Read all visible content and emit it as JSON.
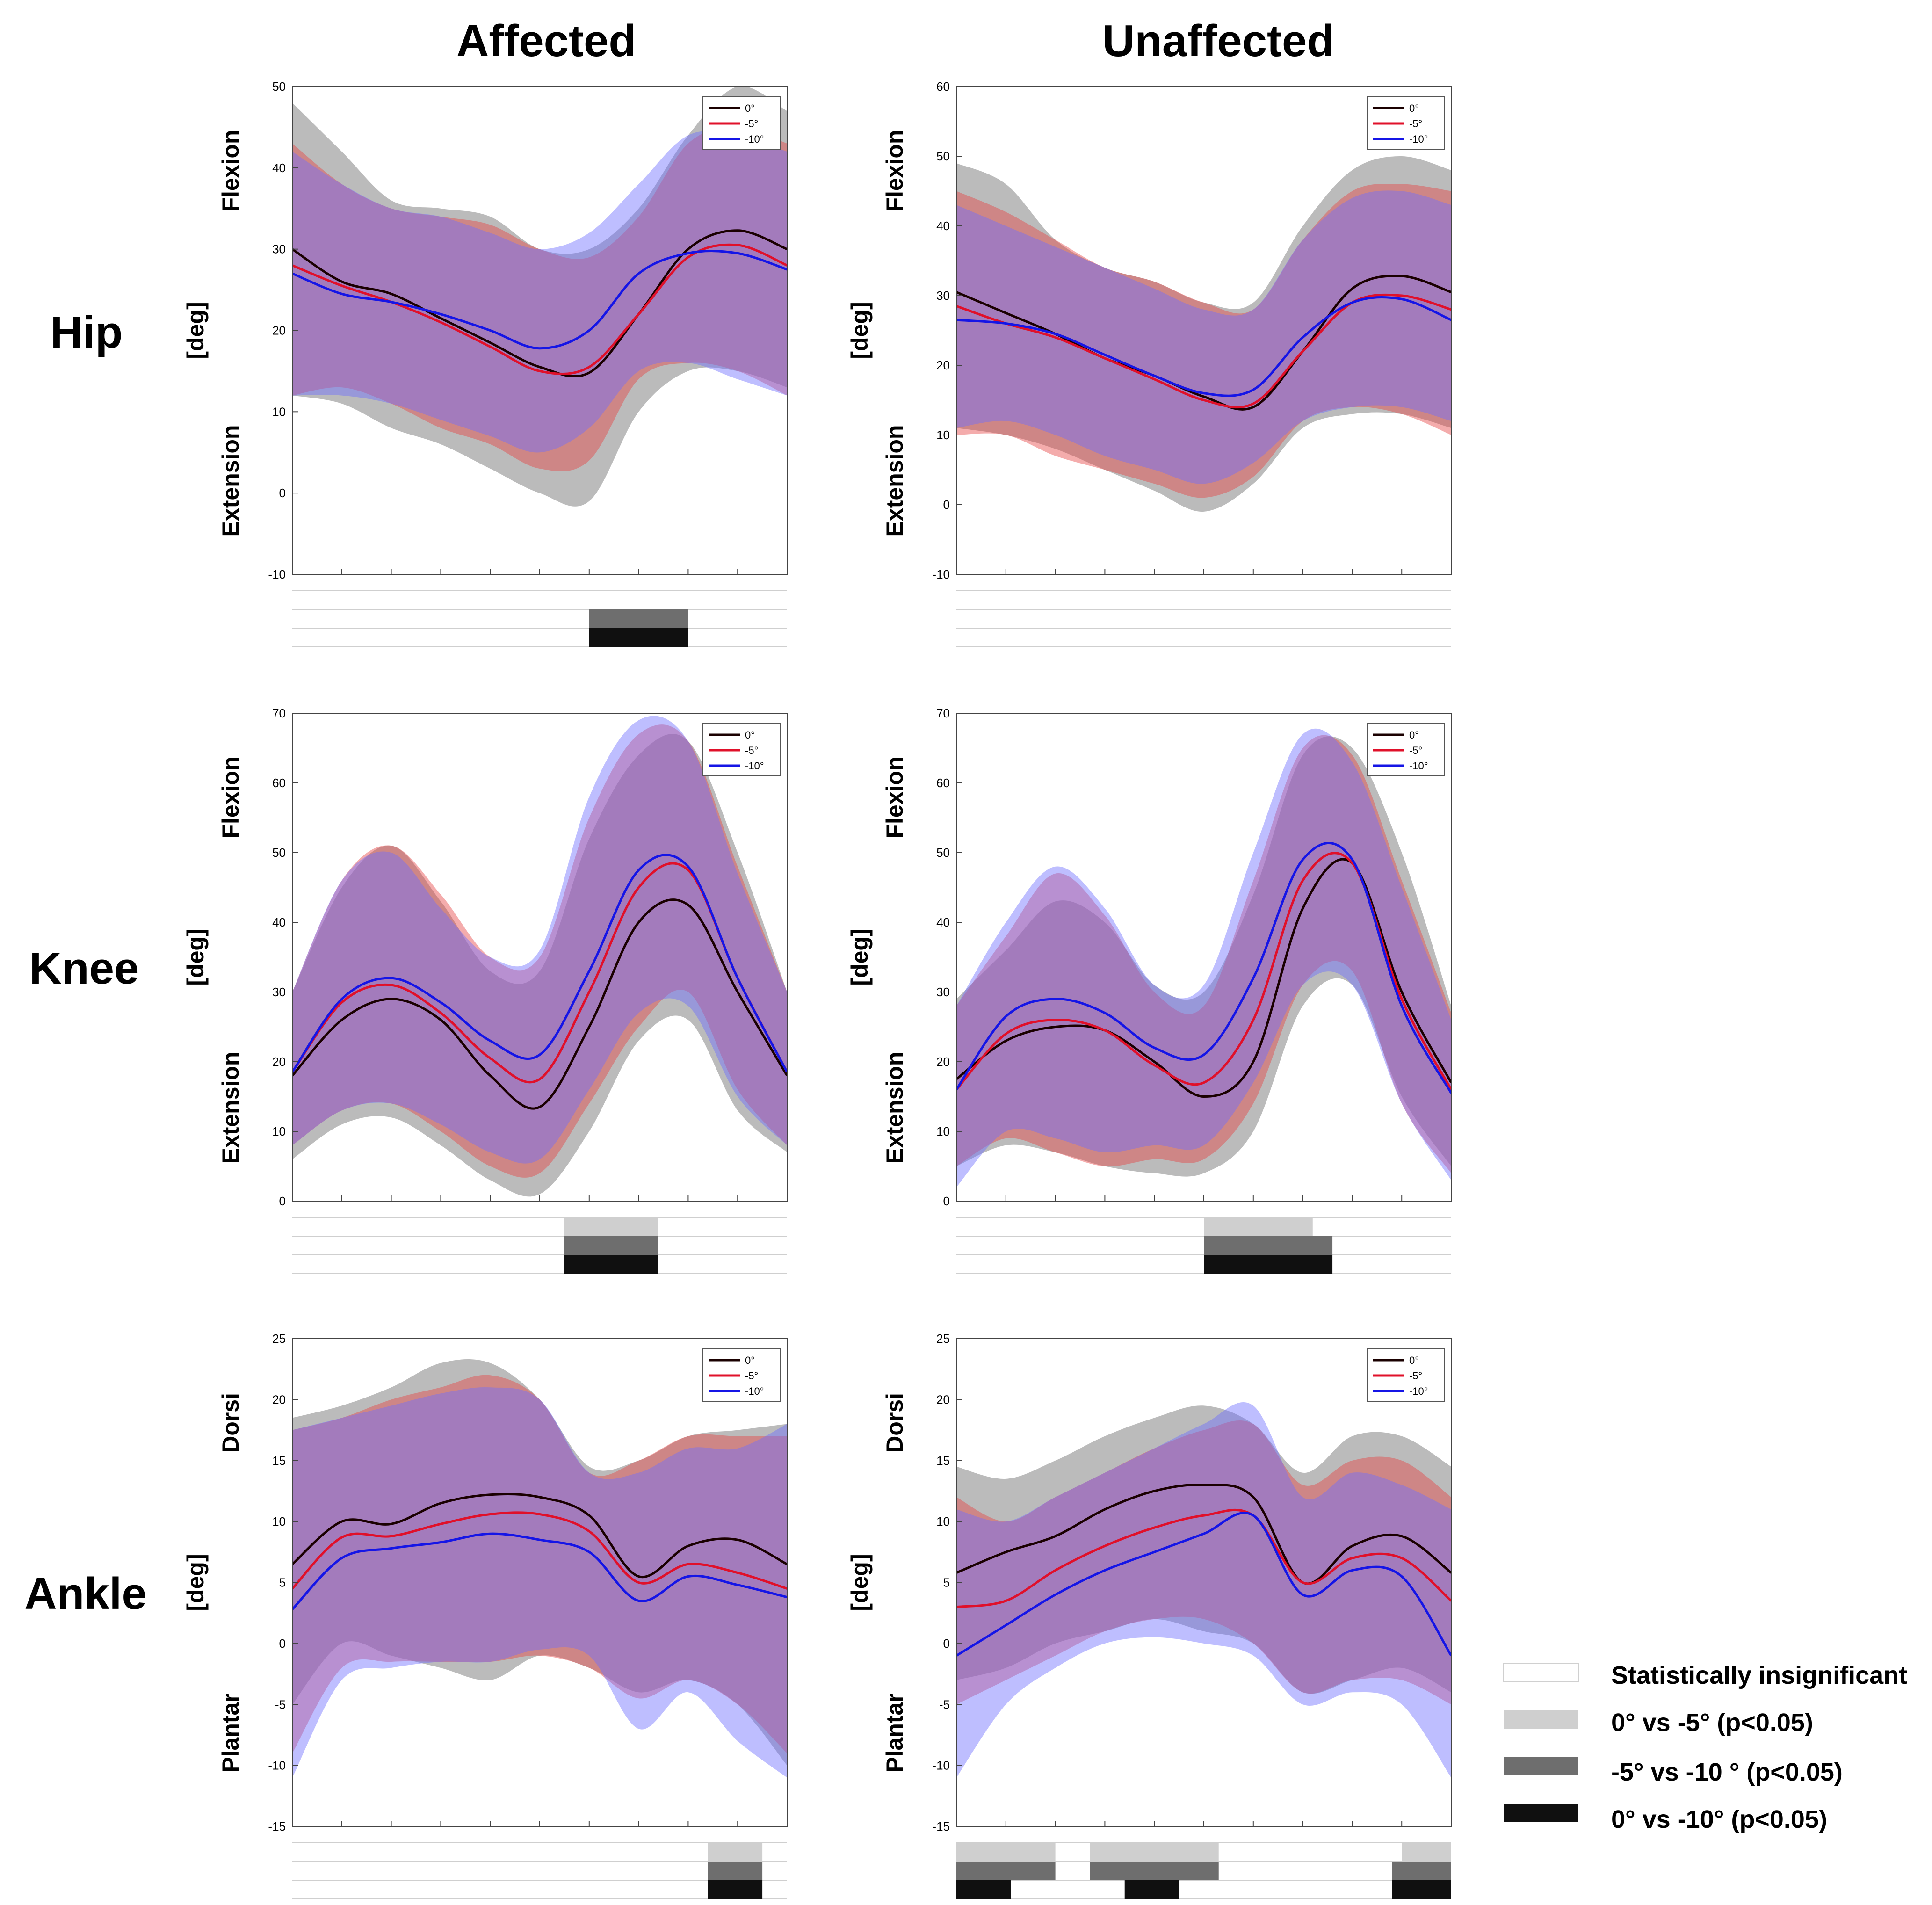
{
  "columns": [
    "Affected",
    "Unaffected"
  ],
  "rows": [
    "Hip",
    "Knee",
    "Ankle"
  ],
  "legend_series": [
    "0°",
    "-5°",
    "-10°"
  ],
  "colors": {
    "zero": "#1a0000",
    "minus5": "#e0102a",
    "minus10": "#1515e6",
    "band_zero": "rgba(120,120,120,0.5)",
    "band_minus5": "rgba(230,70,70,0.45)",
    "band_minus10": "rgba(110,110,255,0.45)",
    "sig_light": "#cfcfcf",
    "sig_mid": "#6e6e6e",
    "sig_dark": "#101010"
  },
  "sig_legend": [
    {
      "label": "Statistically insignificant",
      "color": "#ffffff"
    },
    {
      "label": "0° vs -5° (p<0.05)",
      "color": "#cfcfcf"
    },
    {
      "label": "-5° vs -10 ° (p<0.05)",
      "color": "#6e6e6e"
    },
    {
      "label": "0° vs -10° (p<0.05)",
      "color": "#101010"
    }
  ],
  "chart_data": [
    {
      "type": "line",
      "joint": "Hip",
      "side": "Affected",
      "ylabel": "[deg]",
      "top_label": "Flexion",
      "bottom_label": "Extension",
      "ylim": [
        -10,
        50
      ],
      "yticks": [
        -10,
        0,
        10,
        20,
        30,
        40,
        50
      ],
      "x": [
        0,
        10,
        20,
        30,
        40,
        50,
        60,
        70,
        80,
        90,
        100
      ],
      "series": [
        {
          "name": "0°",
          "color_key": "zero",
          "mean": [
            30,
            26,
            24.5,
            21.5,
            18.5,
            15.5,
            14.8,
            22,
            30,
            32.3,
            30
          ],
          "upper": [
            48,
            42,
            36,
            35,
            34,
            30,
            30,
            35,
            44,
            50,
            47
          ],
          "lower": [
            12,
            11,
            8,
            6,
            3,
            0,
            -1,
            10,
            15,
            15,
            13
          ]
        },
        {
          "name": "-5°",
          "color_key": "minus5",
          "mean": [
            28,
            25.5,
            23.5,
            21,
            18,
            15,
            15.5,
            22,
            29,
            30.5,
            28
          ],
          "upper": [
            43,
            38,
            35,
            34,
            33,
            30,
            29,
            34,
            43,
            45,
            43
          ],
          "lower": [
            12,
            13,
            11,
            8,
            6,
            3,
            4,
            14,
            16,
            15,
            12
          ]
        },
        {
          "name": "-10°",
          "color_key": "minus10",
          "mean": [
            27,
            24.5,
            23.5,
            22,
            20,
            17.8,
            20,
            27,
            29.5,
            29.5,
            27.5
          ],
          "upper": [
            42,
            38,
            35,
            34,
            32,
            30,
            32,
            38,
            44,
            44,
            42
          ],
          "lower": [
            12,
            12,
            11,
            9,
            7,
            5,
            8,
            15,
            16,
            14,
            12
          ]
        }
      ],
      "significance": {
        "insignificant": [],
        "zero_vs_minus5": [],
        "minus5_vs_minus10": [
          [
            60,
            80
          ]
        ],
        "zero_vs_minus10": [
          [
            60,
            80
          ]
        ]
      }
    },
    {
      "type": "line",
      "joint": "Hip",
      "side": "Unaffected",
      "ylabel": "[deg]",
      "top_label": "Flexion",
      "bottom_label": "Extension",
      "ylim": [
        -10,
        60
      ],
      "yticks": [
        -10,
        0,
        10,
        20,
        30,
        40,
        50,
        60
      ],
      "x": [
        0,
        10,
        20,
        30,
        40,
        50,
        60,
        70,
        80,
        90,
        100
      ],
      "series": [
        {
          "name": "0°",
          "color_key": "zero",
          "mean": [
            30.5,
            27.5,
            24.5,
            21,
            18.5,
            15.5,
            14,
            22,
            31,
            32.8,
            30.5
          ],
          "upper": [
            49,
            46,
            38,
            34,
            32,
            29,
            29,
            40,
            48,
            50,
            48
          ],
          "lower": [
            11,
            10,
            8,
            5,
            2,
            -1,
            3,
            11,
            13,
            13,
            11
          ]
        },
        {
          "name": "-5°",
          "color_key": "minus5",
          "mean": [
            28.5,
            26,
            24,
            21,
            18,
            15,
            14.5,
            22,
            29,
            30,
            28
          ],
          "upper": [
            45,
            42,
            38,
            34,
            32,
            29,
            28,
            38,
            45,
            46,
            45
          ],
          "lower": [
            10,
            10,
            7,
            5,
            3,
            1,
            4,
            12,
            14,
            13,
            10
          ]
        },
        {
          "name": "-10°",
          "color_key": "minus10",
          "mean": [
            26.5,
            26,
            24.5,
            21.5,
            18.5,
            16,
            16.5,
            24,
            29,
            29.5,
            26.5
          ],
          "upper": [
            43,
            40,
            37,
            34,
            31,
            28,
            28,
            38,
            44,
            45,
            43
          ],
          "lower": [
            11,
            12,
            10,
            7,
            5,
            3,
            6,
            12,
            14,
            14,
            12
          ]
        }
      ],
      "significance": {
        "insignificant": [],
        "zero_vs_minus5": [],
        "minus5_vs_minus10": [],
        "zero_vs_minus10": []
      }
    },
    {
      "type": "line",
      "joint": "Knee",
      "side": "Affected",
      "ylabel": "[deg]",
      "top_label": "Flexion",
      "bottom_label": "Extension",
      "ylim": [
        0,
        70
      ],
      "yticks": [
        0,
        10,
        20,
        30,
        40,
        50,
        60,
        70
      ],
      "x": [
        0,
        10,
        20,
        30,
        40,
        50,
        60,
        70,
        80,
        90,
        100
      ],
      "series": [
        {
          "name": "0°",
          "color_key": "zero",
          "mean": [
            18,
            26,
            29,
            26,
            18,
            13.5,
            25,
            40,
            42.5,
            30,
            18
          ],
          "upper": [
            30,
            45,
            51,
            43,
            33,
            33,
            52,
            64,
            66,
            50,
            30
          ],
          "lower": [
            6,
            11,
            12,
            8,
            3,
            1,
            10,
            23,
            26,
            13,
            7
          ]
        },
        {
          "name": "-5°",
          "color_key": "minus5",
          "mean": [
            18.5,
            28.5,
            31,
            27,
            20.5,
            17.5,
            30,
            45,
            47.5,
            32,
            18.5
          ],
          "upper": [
            30,
            46,
            51,
            44,
            35,
            35,
            55,
            67,
            66,
            48,
            30
          ],
          "lower": [
            8,
            13,
            14,
            10,
            5,
            4,
            14,
            25,
            30,
            16,
            8
          ]
        },
        {
          "name": "-10°",
          "color_key": "minus10",
          "mean": [
            18.5,
            29,
            32,
            28.5,
            23,
            21,
            33,
            47.5,
            48,
            32,
            18.5
          ],
          "upper": [
            30,
            46,
            50,
            42,
            35,
            36,
            58,
            69,
            66,
            47,
            30
          ],
          "lower": [
            8,
            13,
            14,
            11,
            7,
            6,
            16,
            27,
            28,
            15,
            8
          ]
        }
      ],
      "significance": {
        "insignificant": [],
        "zero_vs_minus5": [
          [
            55,
            74
          ]
        ],
        "minus5_vs_minus10": [
          [
            55,
            74
          ]
        ],
        "zero_vs_minus10": [
          [
            55,
            74
          ]
        ]
      }
    },
    {
      "type": "line",
      "joint": "Knee",
      "side": "Unaffected",
      "ylabel": "[deg]",
      "top_label": "Flexion",
      "bottom_label": "Extension",
      "ylim": [
        0,
        70
      ],
      "yticks": [
        0,
        10,
        20,
        30,
        40,
        50,
        60,
        70
      ],
      "x": [
        0,
        10,
        20,
        30,
        40,
        50,
        60,
        70,
        80,
        90,
        100
      ],
      "series": [
        {
          "name": "0°",
          "color_key": "zero",
          "mean": [
            17.5,
            23,
            25,
            24.5,
            20,
            15,
            20,
            42,
            48.5,
            30,
            17
          ],
          "upper": [
            29,
            36,
            43,
            40,
            31,
            30,
            44,
            64,
            65,
            50,
            28
          ],
          "lower": [
            5,
            8,
            7,
            5,
            4,
            4,
            10,
            28,
            31,
            15,
            5
          ]
        },
        {
          "name": "-5°",
          "color_key": "minus5",
          "mean": [
            16,
            24,
            26,
            24.5,
            19.5,
            17,
            26,
            46,
            48.5,
            29,
            16
          ],
          "upper": [
            28,
            38,
            47,
            41,
            30,
            28,
            46,
            65,
            64,
            46,
            27
          ],
          "lower": [
            5,
            9,
            7,
            5,
            6,
            6,
            14,
            31,
            33,
            14,
            4
          ]
        },
        {
          "name": "-10°",
          "color_key": "minus10",
          "mean": [
            16,
            26.5,
            29,
            27,
            22,
            21,
            32,
            49,
            49,
            28,
            15.5
          ],
          "upper": [
            28,
            40,
            48,
            42,
            31,
            31,
            50,
            67,
            63,
            45,
            26
          ],
          "lower": [
            2,
            10,
            9,
            7,
            8,
            8,
            17,
            31,
            31,
            14,
            3
          ]
        }
      ],
      "significance": {
        "insignificant": [],
        "zero_vs_minus5": [
          [
            50,
            72
          ]
        ],
        "minus5_vs_minus10": [
          [
            50,
            76
          ]
        ],
        "zero_vs_minus10": [
          [
            50,
            76
          ]
        ]
      }
    },
    {
      "type": "line",
      "joint": "Ankle",
      "side": "Affected",
      "ylabel": "[deg]",
      "top_label": "Dorsi",
      "bottom_label": "Plantar",
      "ylim": [
        -15,
        25
      ],
      "yticks": [
        -15,
        -10,
        -5,
        0,
        5,
        10,
        15,
        20,
        25
      ],
      "x": [
        0,
        10,
        20,
        30,
        40,
        50,
        60,
        70,
        80,
        90,
        100
      ],
      "series": [
        {
          "name": "0°",
          "color_key": "zero",
          "mean": [
            6.5,
            10,
            9.8,
            11.5,
            12.2,
            12,
            10.5,
            5.5,
            8,
            8.5,
            6.5
          ],
          "upper": [
            18.5,
            19.5,
            21,
            23,
            23,
            20,
            14.5,
            15,
            17,
            17.5,
            18
          ],
          "lower": [
            -5,
            0,
            -1,
            -2,
            -3,
            -1,
            -2,
            -4,
            -3,
            -5,
            -10
          ]
        },
        {
          "name": "-5°",
          "color_key": "minus5",
          "mean": [
            4.5,
            8.7,
            8.8,
            9.8,
            10.6,
            10.6,
            9.2,
            5,
            6.5,
            5.8,
            4.5
          ],
          "upper": [
            17.5,
            18.5,
            20,
            21,
            22,
            20,
            14,
            15,
            17,
            17,
            17
          ],
          "lower": [
            -9,
            -2,
            -1.5,
            -1.5,
            -1.5,
            -1,
            -2,
            -4.5,
            -3,
            -5,
            -9
          ]
        },
        {
          "name": "-10°",
          "color_key": "minus10",
          "mean": [
            2.8,
            7,
            7.8,
            8.3,
            9,
            8.5,
            7.5,
            3.5,
            5.5,
            4.8,
            3.8
          ],
          "upper": [
            17.5,
            18.5,
            19.5,
            20.5,
            21,
            20,
            14,
            14,
            16,
            16,
            18
          ],
          "lower": [
            -11,
            -3,
            -2,
            -1.5,
            -1.5,
            -0.5,
            -1,
            -7,
            -4,
            -8,
            -11
          ]
        }
      ],
      "significance": {
        "insignificant": [],
        "zero_vs_minus5": [
          [
            84,
            95
          ]
        ],
        "minus5_vs_minus10": [
          [
            84,
            95
          ]
        ],
        "zero_vs_minus10": [
          [
            84,
            95
          ]
        ]
      }
    },
    {
      "type": "line",
      "joint": "Ankle",
      "side": "Unaffected",
      "ylabel": "[deg]",
      "top_label": "Dorsi",
      "bottom_label": "Plantar",
      "ylim": [
        -15,
        25
      ],
      "yticks": [
        -15,
        -10,
        -5,
        0,
        5,
        10,
        15,
        20,
        25
      ],
      "x": [
        0,
        10,
        20,
        30,
        40,
        50,
        60,
        70,
        80,
        90,
        100
      ],
      "series": [
        {
          "name": "0°",
          "color_key": "zero",
          "mean": [
            5.8,
            7.5,
            8.8,
            11,
            12.5,
            13,
            12,
            5,
            8,
            8.8,
            5.8
          ],
          "upper": [
            14.5,
            13.5,
            15,
            17,
            18.5,
            19.5,
            18,
            14,
            17,
            17,
            14.5
          ],
          "lower": [
            -3,
            -2,
            0,
            1,
            2,
            1,
            0,
            -4,
            -3,
            -2,
            -4
          ]
        },
        {
          "name": "-5°",
          "color_key": "minus5",
          "mean": [
            3,
            3.5,
            6,
            8,
            9.5,
            10.5,
            10.5,
            5,
            7,
            7,
            3.5
          ],
          "upper": [
            12,
            10,
            12,
            14,
            16,
            17.5,
            18,
            13,
            15,
            15,
            12
          ],
          "lower": [
            -5,
            -3,
            -1,
            1,
            2,
            2,
            0,
            -4,
            -3,
            -3,
            -5
          ]
        },
        {
          "name": "-10°",
          "color_key": "minus10",
          "mean": [
            -1,
            1.5,
            4,
            6,
            7.5,
            9,
            10.5,
            4,
            6,
            5.5,
            -1
          ],
          "upper": [
            11,
            10,
            12,
            14,
            16,
            18,
            19.5,
            12,
            14,
            13,
            11
          ],
          "lower": [
            -11,
            -5,
            -2,
            0,
            0.5,
            0,
            -1,
            -5,
            -4,
            -5,
            -11
          ]
        }
      ],
      "significance": {
        "insignificant": [],
        "zero_vs_minus5": [
          [
            0,
            20
          ],
          [
            27,
            53
          ],
          [
            90,
            100
          ]
        ],
        "minus5_vs_minus10": [
          [
            0,
            20
          ],
          [
            27,
            53
          ],
          [
            88,
            100
          ]
        ],
        "zero_vs_minus10": [
          [
            0,
            11
          ],
          [
            34,
            45
          ],
          [
            88,
            100
          ]
        ]
      }
    }
  ]
}
